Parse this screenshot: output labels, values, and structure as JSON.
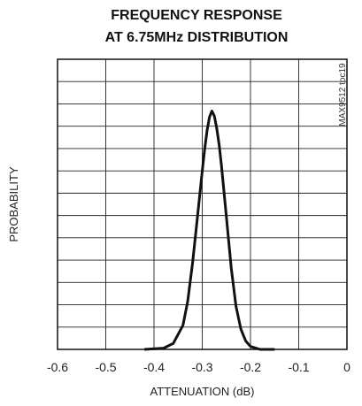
{
  "chart_data": {
    "type": "line",
    "title_line1": "FREQUENCY RESPONSE",
    "title_line2": "AT 6.75MHz DISTRIBUTION",
    "xlabel": "ATTENUATION (dB)",
    "ylabel": "PROBABILITY",
    "figure_id": "MAX9512 toc19",
    "xlim": [
      -0.6,
      0
    ],
    "ylim": [
      0,
      1
    ],
    "x_ticks": [
      "-0.6",
      "-0.5",
      "-0.4",
      "-0.3",
      "-0.2",
      "-0.1",
      "0"
    ],
    "x_divisions": 6,
    "y_divisions": 13,
    "grid": true,
    "series": [
      {
        "x": [
          -0.42,
          -0.38,
          -0.36,
          -0.34,
          -0.33,
          -0.32,
          -0.31,
          -0.3,
          -0.295,
          -0.29,
          -0.285,
          -0.28,
          -0.275,
          -0.27,
          -0.265,
          -0.26,
          -0.25,
          -0.24,
          -0.23,
          -0.22,
          -0.21,
          -0.2,
          -0.18,
          -0.15
        ],
        "y": [
          0.0,
          0.005,
          0.025,
          0.1,
          0.2,
          0.36,
          0.55,
          0.74,
          0.83,
          0.91,
          0.965,
          0.99,
          0.97,
          0.92,
          0.85,
          0.76,
          0.55,
          0.34,
          0.18,
          0.085,
          0.035,
          0.012,
          0.0,
          0.0
        ]
      }
    ]
  }
}
